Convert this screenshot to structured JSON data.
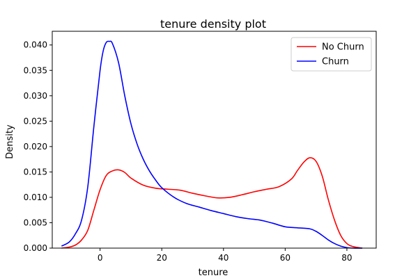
{
  "chart_data": {
    "type": "line",
    "title": "tenure density plot",
    "xlabel": "tenure",
    "ylabel": "Density",
    "xlim": [
      -15.5,
      89.5
    ],
    "ylim": [
      0,
      0.0427
    ],
    "x_ticks": [
      0,
      20,
      40,
      60,
      80
    ],
    "x_tick_labels": [
      "0",
      "20",
      "40",
      "60",
      "80"
    ],
    "y_ticks": [
      0.0,
      0.005,
      0.01,
      0.015,
      0.02,
      0.025,
      0.03,
      0.035,
      0.04
    ],
    "y_tick_labels": [
      "0.000",
      "0.005",
      "0.010",
      "0.015",
      "0.020",
      "0.025",
      "0.030",
      "0.035",
      "0.040"
    ],
    "grid": false,
    "legend_position": "top-right",
    "series": [
      {
        "name": "No Churn",
        "color": "#ff0000",
        "x": [
          -12.5,
          -10,
          -8,
          -6,
          -4,
          -2,
          0,
          2,
          4,
          6,
          8,
          10,
          14,
          18,
          22,
          26,
          30,
          34,
          38,
          42,
          46,
          50,
          54,
          58,
          62,
          64,
          66,
          68,
          70,
          72,
          74,
          76,
          78,
          80,
          82,
          85
        ],
        "y": [
          0.0,
          0.0002,
          0.0006,
          0.0016,
          0.0035,
          0.0075,
          0.0115,
          0.0143,
          0.0152,
          0.0154,
          0.0149,
          0.0138,
          0.0124,
          0.0118,
          0.0116,
          0.0114,
          0.0108,
          0.0103,
          0.0099,
          0.01,
          0.0105,
          0.0111,
          0.0116,
          0.0121,
          0.0136,
          0.0153,
          0.0169,
          0.0178,
          0.0171,
          0.0142,
          0.0095,
          0.0055,
          0.0025,
          0.0009,
          0.0003,
          0.0
        ]
      },
      {
        "name": "Churn",
        "color": "#0000ff",
        "x": [
          -12.5,
          -10,
          -8,
          -6,
          -4,
          -2,
          0,
          1,
          2,
          3,
          4,
          6,
          8,
          10,
          12,
          14,
          16,
          18,
          20,
          24,
          28,
          32,
          36,
          40,
          44,
          48,
          52,
          56,
          60,
          64,
          68,
          70,
          72,
          74,
          76,
          78,
          80,
          82,
          85
        ],
        "y": [
          0.0004,
          0.0012,
          0.0028,
          0.0055,
          0.012,
          0.024,
          0.035,
          0.0388,
          0.0405,
          0.0407,
          0.0403,
          0.0365,
          0.03,
          0.0245,
          0.0205,
          0.0175,
          0.0152,
          0.0134,
          0.0119,
          0.01,
          0.0088,
          0.0081,
          0.0074,
          0.0068,
          0.0062,
          0.0058,
          0.0055,
          0.0049,
          0.0042,
          0.004,
          0.0038,
          0.0033,
          0.0025,
          0.0016,
          0.0009,
          0.0004,
          0.0001,
          0.0,
          0.0
        ]
      }
    ]
  }
}
